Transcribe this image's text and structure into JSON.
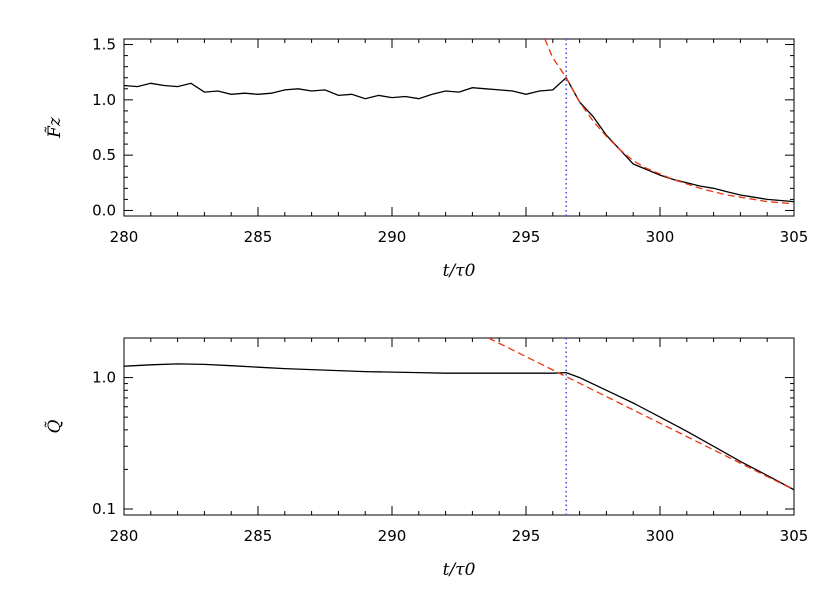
{
  "chart_data": [
    {
      "type": "line",
      "xlabel": "t/τ0",
      "ylabel": "F̃z",
      "xlim": [
        280,
        305
      ],
      "ylim": [
        -0.05,
        1.55
      ],
      "yscale": "linear",
      "xticks": [
        280,
        285,
        290,
        295,
        300,
        305
      ],
      "xtick_labels": [
        "280",
        "285",
        "290",
        "295",
        "300",
        "305"
      ],
      "yticks": [
        0.0,
        0.5,
        1.0,
        1.5
      ],
      "ytick_labels": [
        "0.0",
        "0.5",
        "1.0",
        "1.5"
      ],
      "grid": false,
      "vline": {
        "x": 296.5,
        "color": "#5555dd",
        "style": "dotted"
      },
      "series": [
        {
          "color": "#000000",
          "style": "solid",
          "x": [
            280.0,
            280.5,
            281.0,
            281.5,
            282.0,
            282.5,
            283.0,
            283.5,
            284.0,
            284.5,
            285.0,
            285.5,
            286.0,
            286.5,
            287.0,
            287.5,
            288.0,
            288.5,
            289.0,
            289.5,
            290.0,
            290.5,
            291.0,
            291.5,
            292.0,
            292.5,
            293.0,
            293.5,
            294.0,
            294.5,
            295.0,
            295.5,
            296.0,
            296.5,
            297.0,
            297.5,
            298.0,
            298.5,
            299.0,
            299.5,
            300.0,
            300.5,
            301.0,
            301.5,
            302.0,
            302.5,
            303.0,
            303.5,
            304.0,
            304.5,
            305.0
          ],
          "y": [
            1.13,
            1.12,
            1.15,
            1.13,
            1.12,
            1.15,
            1.07,
            1.08,
            1.05,
            1.06,
            1.05,
            1.06,
            1.09,
            1.1,
            1.08,
            1.09,
            1.04,
            1.05,
            1.01,
            1.04,
            1.02,
            1.03,
            1.01,
            1.05,
            1.08,
            1.07,
            1.11,
            1.1,
            1.09,
            1.08,
            1.05,
            1.08,
            1.09,
            1.2,
            0.98,
            0.85,
            0.68,
            0.55,
            0.42,
            0.37,
            0.32,
            0.28,
            0.25,
            0.22,
            0.2,
            0.17,
            0.14,
            0.12,
            0.1,
            0.09,
            0.08
          ]
        },
        {
          "color": "#ee3311",
          "style": "dashed",
          "x": [
            295.7,
            296.0,
            296.5,
            297.0,
            297.5,
            298.0,
            298.5,
            299.0,
            299.5,
            300.0,
            300.5,
            301.0,
            301.5,
            302.0,
            302.5,
            303.0,
            303.5,
            304.0,
            304.5,
            305.0
          ],
          "y": [
            1.55,
            1.38,
            1.2,
            0.98,
            0.81,
            0.67,
            0.55,
            0.45,
            0.38,
            0.33,
            0.28,
            0.24,
            0.2,
            0.17,
            0.14,
            0.12,
            0.1,
            0.08,
            0.07,
            0.06
          ]
        }
      ]
    },
    {
      "type": "line",
      "xlabel": "t/τ0",
      "ylabel": "Q̃",
      "xlim": [
        280,
        305
      ],
      "ylim": [
        0.09,
        2.0
      ],
      "yscale": "log",
      "xticks": [
        280,
        285,
        290,
        295,
        300,
        305
      ],
      "xtick_labels": [
        "280",
        "285",
        "290",
        "295",
        "300",
        "305"
      ],
      "yticks": [
        0.1,
        1.0
      ],
      "ytick_labels": [
        "0.1",
        "1.0"
      ],
      "grid": false,
      "vline": {
        "x": 296.5,
        "color": "#5555dd",
        "style": "dotted"
      },
      "series": [
        {
          "color": "#000000",
          "style": "solid",
          "x": [
            280,
            281,
            282,
            283,
            284,
            285,
            286,
            287,
            288,
            289,
            290,
            291,
            292,
            293,
            294,
            295,
            296,
            296.5,
            297,
            298,
            299,
            300,
            301,
            302,
            303,
            304,
            305
          ],
          "y": [
            1.22,
            1.25,
            1.27,
            1.26,
            1.23,
            1.2,
            1.17,
            1.15,
            1.13,
            1.11,
            1.1,
            1.09,
            1.08,
            1.08,
            1.08,
            1.08,
            1.08,
            1.09,
            1.0,
            0.8,
            0.64,
            0.5,
            0.39,
            0.3,
            0.23,
            0.18,
            0.14
          ]
        },
        {
          "color": "#ee3311",
          "style": "dashed",
          "x": [
            293.6,
            305.0
          ],
          "y": [
            2.0,
            0.14
          ]
        }
      ]
    }
  ]
}
